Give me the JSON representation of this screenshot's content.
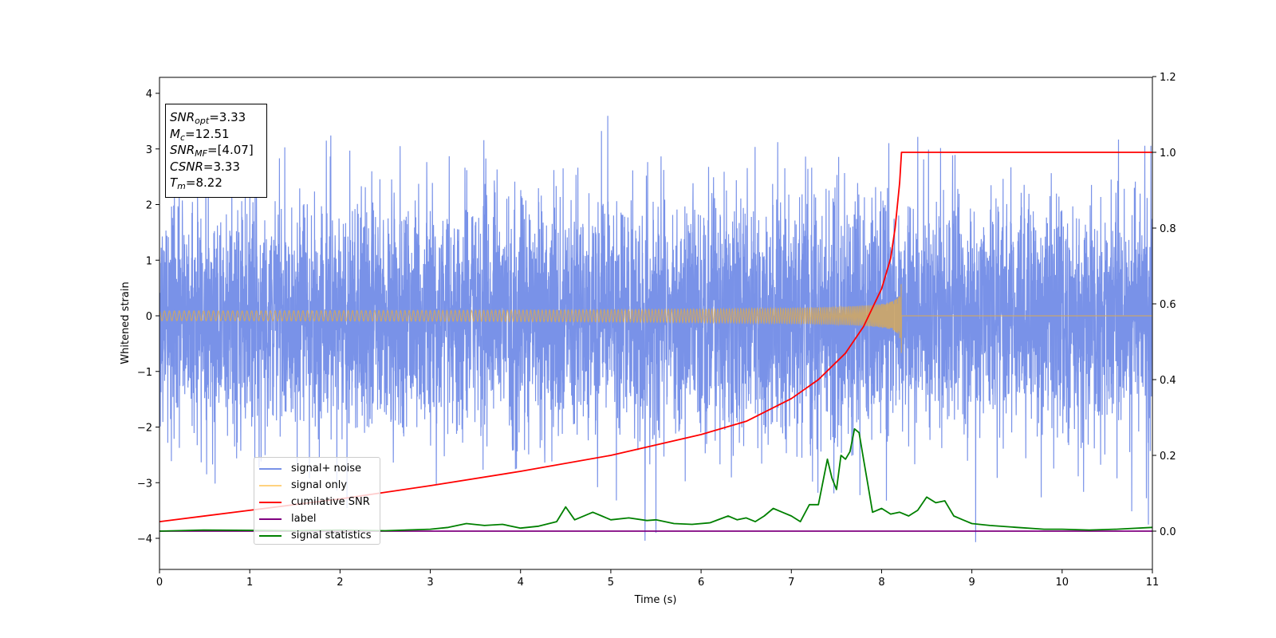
{
  "chart_data": {
    "type": "line",
    "xlabel": "Time (s)",
    "ylabel": "Whitened strain",
    "xlim": [
      0,
      11
    ],
    "ylim": [
      -4.55,
      4.3
    ],
    "y2lim": [
      -0.1,
      1.2
    ],
    "grid": false,
    "legend_position": "lower-left",
    "x_ticks": [
      "0",
      "1",
      "2",
      "3",
      "4",
      "5",
      "6",
      "7",
      "8",
      "9",
      "10",
      "11"
    ],
    "y_ticks": [
      "4",
      "3",
      "2",
      "1",
      "0",
      "−1",
      "−2",
      "−3",
      "−4"
    ],
    "y2_ticks": [
      "1.2",
      "1.0",
      "0.8",
      "0.6",
      "0.4",
      "0.2",
      "0.0"
    ],
    "annotation": [
      {
        "name": "SNR",
        "sub": "opt",
        "value": "=3.33"
      },
      {
        "name": "M",
        "sub": "c",
        "value": "=12.51"
      },
      {
        "name": "SNR",
        "sub": "MF",
        "value": "=[4.07]"
      },
      {
        "name": "CSNR",
        "sub": "",
        "value": "=3.33"
      },
      {
        "name": "T",
        "sub": "m",
        "value": "=8.22"
      }
    ],
    "series": [
      {
        "name": "signal+ noise",
        "color": "#7992e8",
        "axis": "left",
        "description": "whitened noisy strain, approx. gaussian with sd ~1.1, range about -4.1 to 3.9",
        "envelope": [
          -4.1,
          3.9
        ]
      },
      {
        "name": "signal only",
        "color": "#f5c76b",
        "axis": "left",
        "description": "chirp growing from ~0 to peak amplitude ~0.7 at t=8.22 then 0",
        "merger_time": 8.22,
        "peak_amplitude": 0.7
      },
      {
        "name": "cumilative SNR",
        "color": "#ff0000",
        "axis": "right",
        "x": [
          0,
          1,
          2,
          3,
          4,
          5,
          6,
          6.5,
          7,
          7.3,
          7.6,
          7.8,
          8.0,
          8.1,
          8.15,
          8.2,
          8.22,
          9,
          10,
          11
        ],
        "y": [
          0.025,
          0.055,
          0.085,
          0.12,
          0.158,
          0.2,
          0.255,
          0.29,
          0.35,
          0.4,
          0.47,
          0.54,
          0.64,
          0.72,
          0.8,
          0.92,
          1.0,
          1.0,
          1.0,
          1.0
        ]
      },
      {
        "name": "label",
        "color": "#800080",
        "axis": "right",
        "x": [
          0,
          11
        ],
        "y": [
          0.0,
          0.0
        ]
      },
      {
        "name": "signal statistics",
        "color": "#008000",
        "axis": "right",
        "x": [
          0,
          0.5,
          1,
          1.5,
          2,
          2.5,
          3,
          3.2,
          3.4,
          3.6,
          3.8,
          4.0,
          4.2,
          4.4,
          4.5,
          4.6,
          4.8,
          4.9,
          5.0,
          5.2,
          5.4,
          5.5,
          5.7,
          5.9,
          6.1,
          6.3,
          6.4,
          6.5,
          6.6,
          6.7,
          6.8,
          6.9,
          7.0,
          7.1,
          7.2,
          7.3,
          7.4,
          7.45,
          7.5,
          7.55,
          7.6,
          7.65,
          7.7,
          7.75,
          7.8,
          7.85,
          7.9,
          8.0,
          8.1,
          8.2,
          8.3,
          8.4,
          8.5,
          8.6,
          8.7,
          8.8,
          8.9,
          9.0,
          9.2,
          9.5,
          9.8,
          10,
          10.3,
          10.6,
          11
        ],
        "y": [
          0.0,
          0.003,
          0.002,
          0.001,
          0.003,
          0.001,
          0.005,
          0.01,
          0.02,
          0.015,
          0.018,
          0.008,
          0.013,
          0.025,
          0.064,
          0.03,
          0.05,
          0.04,
          0.03,
          0.035,
          0.028,
          0.03,
          0.02,
          0.018,
          0.022,
          0.04,
          0.03,
          0.035,
          0.025,
          0.04,
          0.06,
          0.05,
          0.04,
          0.025,
          0.07,
          0.07,
          0.19,
          0.14,
          0.11,
          0.2,
          0.19,
          0.21,
          0.27,
          0.26,
          0.19,
          0.12,
          0.05,
          0.06,
          0.045,
          0.05,
          0.04,
          0.055,
          0.09,
          0.075,
          0.08,
          0.04,
          0.03,
          0.02,
          0.015,
          0.01,
          0.005,
          0.005,
          0.003,
          0.005,
          0.01
        ]
      }
    ]
  }
}
